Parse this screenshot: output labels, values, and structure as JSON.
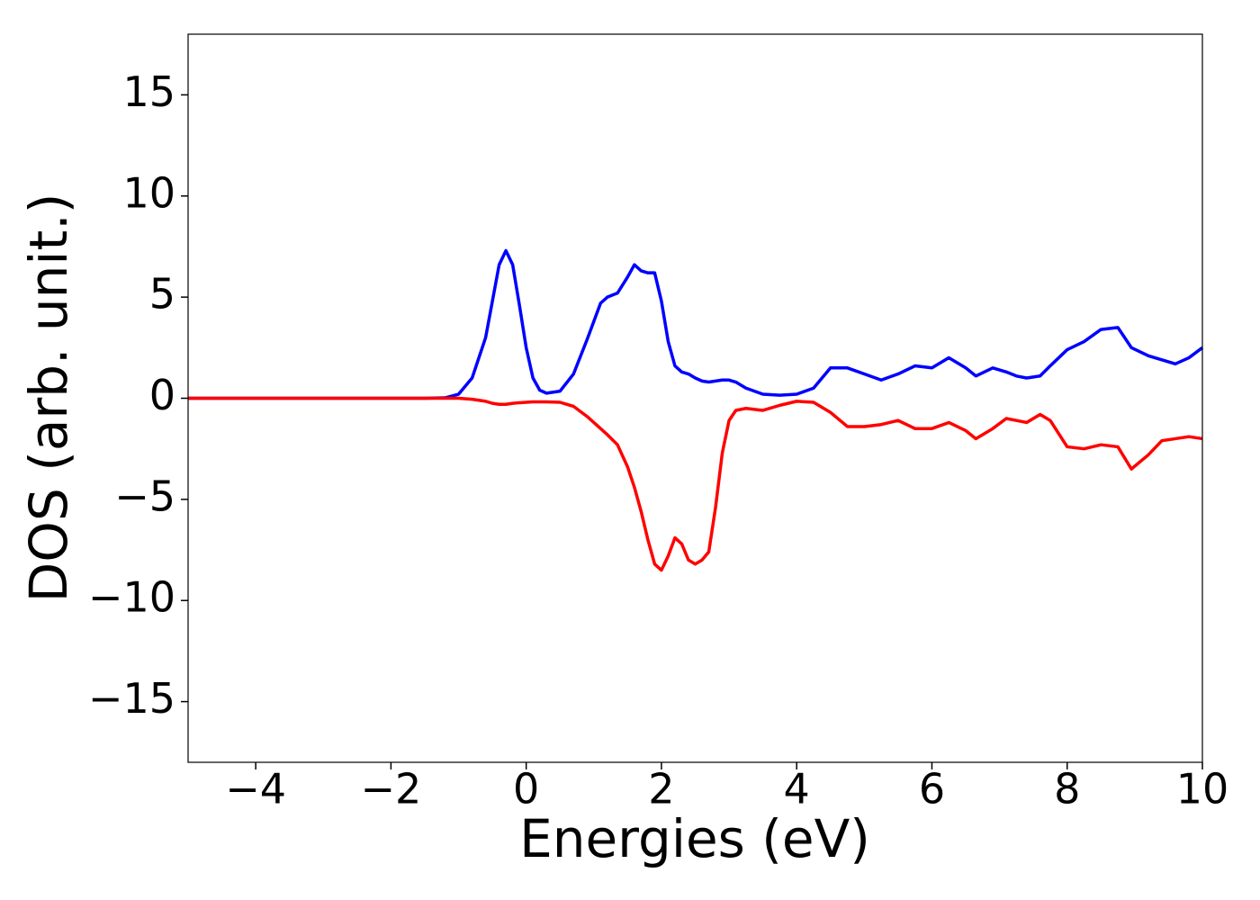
{
  "chart_data": {
    "type": "line",
    "x_label": "Energies (eV)",
    "y_label": "DOS (arb. unit.)",
    "x": [
      -5,
      -4,
      -3,
      -2,
      -1.5,
      -1.2,
      -1.0,
      -0.8,
      -0.6,
      -0.5,
      -0.4,
      -0.3,
      -0.2,
      -0.1,
      0,
      0.1,
      0.2,
      0.3,
      0.5,
      0.7,
      0.9,
      1.0,
      1.1,
      1.2,
      1.35,
      1.5,
      1.6,
      1.7,
      1.8,
      1.9,
      2.0,
      2.1,
      2.2,
      2.3,
      2.4,
      2.5,
      2.6,
      2.7,
      2.8,
      2.9,
      3.0,
      3.1,
      3.25,
      3.5,
      3.75,
      4.0,
      4.25,
      4.5,
      4.75,
      5.0,
      5.25,
      5.5,
      5.75,
      6.0,
      6.25,
      6.5,
      6.65,
      6.9,
      7.1,
      7.25,
      7.4,
      7.6,
      7.75,
      8.0,
      8.25,
      8.5,
      8.75,
      8.95,
      9.2,
      9.4,
      9.6,
      9.8,
      10
    ],
    "series": [
      {
        "color": "#0000ff",
        "values": [
          0,
          0,
          0,
          0,
          0,
          0.02,
          0.2,
          1.0,
          3.0,
          4.8,
          6.6,
          7.3,
          6.6,
          4.6,
          2.5,
          1.0,
          0.4,
          0.25,
          0.35,
          1.2,
          2.9,
          3.8,
          4.7,
          5.0,
          5.2,
          6.0,
          6.6,
          6.3,
          6.2,
          6.2,
          4.8,
          2.8,
          1.6,
          1.3,
          1.2,
          1.0,
          0.85,
          0.8,
          0.85,
          0.9,
          0.9,
          0.8,
          0.5,
          0.2,
          0.15,
          0.2,
          0.5,
          1.5,
          1.5,
          1.2,
          0.9,
          1.2,
          1.6,
          1.5,
          2.0,
          1.5,
          1.1,
          1.5,
          1.3,
          1.1,
          1.0,
          1.1,
          1.6,
          2.4,
          2.8,
          3.4,
          3.5,
          2.5,
          2.1,
          1.9,
          1.7,
          2.0,
          2.5
        ]
      },
      {
        "color": "#ff0000",
        "values": [
          0,
          0,
          0,
          0,
          0,
          0,
          0,
          -0.05,
          -0.15,
          -0.25,
          -0.3,
          -0.3,
          -0.25,
          -0.22,
          -0.2,
          -0.18,
          -0.18,
          -0.18,
          -0.2,
          -0.4,
          -0.9,
          -1.2,
          -1.5,
          -1.8,
          -2.3,
          -3.4,
          -4.4,
          -5.6,
          -7.0,
          -8.2,
          -8.5,
          -7.8,
          -6.9,
          -7.2,
          -8.0,
          -8.2,
          -8.0,
          -7.6,
          -5.4,
          -2.7,
          -1.1,
          -0.6,
          -0.5,
          -0.6,
          -0.35,
          -0.15,
          -0.2,
          -0.7,
          -1.4,
          -1.4,
          -1.3,
          -1.1,
          -1.5,
          -1.5,
          -1.2,
          -1.6,
          -2.0,
          -1.5,
          -1.0,
          -1.1,
          -1.2,
          -0.8,
          -1.1,
          -2.4,
          -2.5,
          -2.3,
          -2.4,
          -3.5,
          -2.8,
          -2.1,
          -2.0,
          -1.9,
          -2.0
        ]
      }
    ],
    "xlim": [
      -5,
      10
    ],
    "ylim": [
      -18,
      18
    ],
    "xticks": [
      {
        "value": -4,
        "label": "−4"
      },
      {
        "value": -2,
        "label": "−2"
      },
      0,
      2,
      4,
      6,
      8,
      10
    ],
    "yticks": [
      {
        "value": -15,
        "label": "−15"
      },
      {
        "value": -10,
        "label": "−10"
      },
      {
        "value": -5,
        "label": "−5"
      },
      0,
      5,
      10,
      15
    ]
  }
}
